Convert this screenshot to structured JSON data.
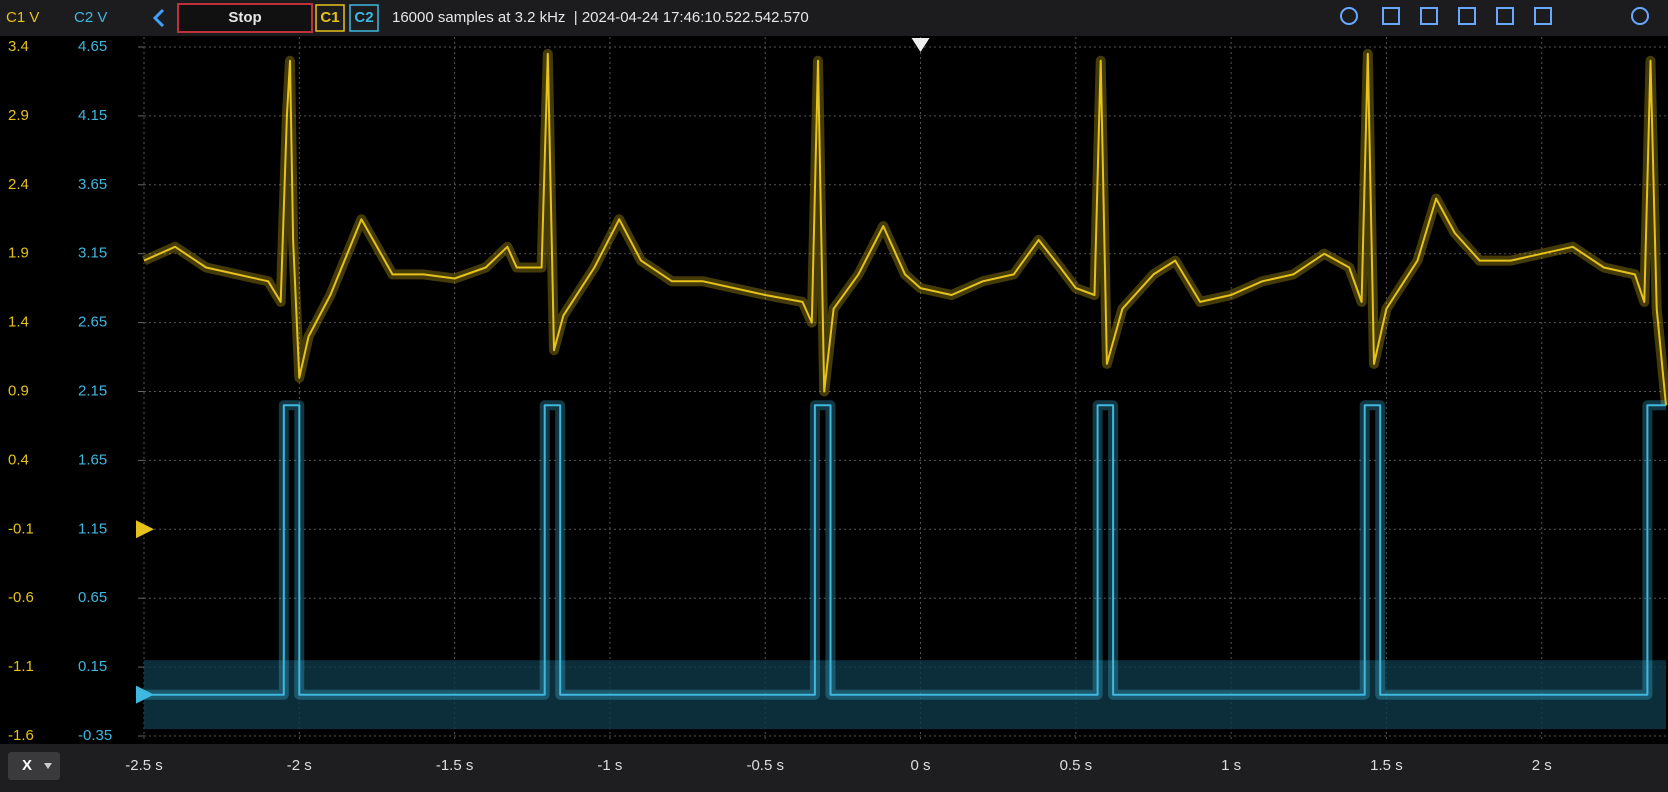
{
  "toolbar": {
    "stop": "Stop",
    "c1": "C1",
    "c2": "C2",
    "info": "16000 samples at 3.2 kHz  | 2024-04-24 17:46:10.522.542.570",
    "x_button": "X"
  },
  "chart_data": {
    "type": "line",
    "y_label": "C1 V",
    "y2_label": "C2 V",
    "xlim": [
      -2.5,
      2.4
    ],
    "ylim": [
      -1.6,
      3.4
    ],
    "y2lim": [
      -0.35,
      4.65
    ],
    "xticks": [
      {
        "value": -2.5,
        "label": "-2.5 s"
      },
      {
        "value": -2,
        "label": "-2 s"
      },
      {
        "value": -1.5,
        "label": "-1.5 s"
      },
      {
        "value": -1,
        "label": "-1 s"
      },
      {
        "value": -0.5,
        "label": "-0.5 s"
      },
      {
        "value": 0,
        "label": "0 s"
      },
      {
        "value": 0.5,
        "label": "0.5 s"
      },
      {
        "value": 1,
        "label": "1 s"
      },
      {
        "value": 1.5,
        "label": "1.5 s"
      },
      {
        "value": 2,
        "label": "2 s"
      }
    ],
    "yticks": [
      3.4,
      2.9,
      2.4,
      1.9,
      1.4,
      0.9,
      0.4,
      -0.1,
      -0.6,
      -1.1,
      -1.6
    ],
    "y2ticks": [
      4.65,
      4.15,
      3.65,
      3.15,
      2.65,
      2.15,
      1.65,
      1.15,
      0.65,
      0.15,
      -0.35
    ],
    "grid": true,
    "series": [
      {
        "name": "C1",
        "color": "#e6c21c",
        "x": [
          -2.5,
          -2.4,
          -2.3,
          -2.2,
          -2.1,
          -2.06,
          -2.04,
          -2.03,
          -2.02,
          -2.0,
          -1.97,
          -1.9,
          -1.8,
          -1.75,
          -1.7,
          -1.6,
          -1.5,
          -1.4,
          -1.33,
          -1.3,
          -1.22,
          -1.2,
          -1.18,
          -1.15,
          -1.05,
          -0.97,
          -0.9,
          -0.8,
          -0.7,
          -0.6,
          -0.5,
          -0.38,
          -0.35,
          -0.33,
          -0.31,
          -0.28,
          -0.2,
          -0.12,
          -0.05,
          0.0,
          0.1,
          0.2,
          0.3,
          0.38,
          0.45,
          0.5,
          0.56,
          0.58,
          0.6,
          0.65,
          0.75,
          0.82,
          0.9,
          1.0,
          1.1,
          1.2,
          1.3,
          1.38,
          1.42,
          1.44,
          1.46,
          1.5,
          1.6,
          1.66,
          1.72,
          1.8,
          1.9,
          2.0,
          2.1,
          2.2,
          2.3,
          2.33,
          2.35,
          2.37,
          2.4
        ],
        "values": [
          1.85,
          1.95,
          1.8,
          1.75,
          1.7,
          1.55,
          2.9,
          3.3,
          2.0,
          1.0,
          1.3,
          1.6,
          2.15,
          1.95,
          1.75,
          1.75,
          1.72,
          1.8,
          1.95,
          1.8,
          1.8,
          3.35,
          1.2,
          1.45,
          1.8,
          2.15,
          1.85,
          1.7,
          1.7,
          1.65,
          1.6,
          1.55,
          1.4,
          3.3,
          0.9,
          1.5,
          1.75,
          2.1,
          1.75,
          1.65,
          1.6,
          1.7,
          1.75,
          2.0,
          1.8,
          1.65,
          1.6,
          3.3,
          1.1,
          1.5,
          1.75,
          1.85,
          1.55,
          1.6,
          1.7,
          1.75,
          1.9,
          1.8,
          1.55,
          3.35,
          1.1,
          1.5,
          1.85,
          2.3,
          2.05,
          1.85,
          1.85,
          1.9,
          1.95,
          1.8,
          1.75,
          1.55,
          3.3,
          1.5,
          0.8
        ]
      },
      {
        "name": "C2",
        "color": "#3fb8e0",
        "axis": "y2",
        "x": [
          -2.5,
          -2.05,
          -2.05,
          -2.0,
          -2.0,
          -1.21,
          -1.21,
          -1.16,
          -1.16,
          -0.34,
          -0.34,
          -0.29,
          -0.29,
          0.57,
          0.57,
          0.62,
          0.62,
          1.43,
          1.43,
          1.48,
          1.48,
          2.34,
          2.34,
          2.4
        ],
        "values": [
          -0.05,
          -0.05,
          2.05,
          2.05,
          -0.05,
          -0.05,
          2.05,
          2.05,
          -0.05,
          -0.05,
          2.05,
          2.05,
          -0.05,
          -0.05,
          2.05,
          2.05,
          -0.05,
          -0.05,
          2.05,
          2.05,
          -0.05,
          -0.05,
          2.05,
          2.05
        ]
      }
    ]
  }
}
